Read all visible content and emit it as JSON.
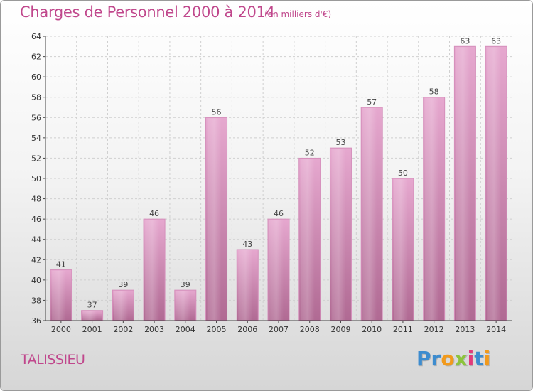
{
  "chart_data": {
    "type": "bar",
    "title": "Charges de Personnel 2000 à 2014",
    "subtitle": "(en milliers d'€)",
    "categories": [
      "2000",
      "2001",
      "2002",
      "2003",
      "2004",
      "2005",
      "2006",
      "2007",
      "2008",
      "2009",
      "2010",
      "2011",
      "2012",
      "2013",
      "2014"
    ],
    "values": [
      41,
      37,
      39,
      46,
      39,
      56,
      43,
      46,
      52,
      53,
      57,
      50,
      58,
      63,
      63
    ],
    "ylim": [
      36,
      64
    ],
    "yticks": [
      36,
      38,
      40,
      42,
      44,
      46,
      48,
      50,
      52,
      54,
      56,
      58,
      60,
      62,
      64
    ],
    "xlabel": "",
    "ylabel": "",
    "grid": true,
    "bar_color_top": "#e6a8cf",
    "bar_color_bottom": "#b06a93"
  },
  "footer": {
    "commune": "TALISSIEU",
    "brand": {
      "letters": [
        {
          "ch": "P",
          "color": "#3d8ccf"
        },
        {
          "ch": "r",
          "color": "#3d8ccf"
        },
        {
          "ch": "o",
          "color": "#f29a1c"
        },
        {
          "ch": "x",
          "color": "#8cc43c"
        },
        {
          "ch": "i",
          "color": "#e23a7b"
        },
        {
          "ch": "t",
          "color": "#3d8ccf"
        },
        {
          "ch": "i",
          "color": "#f29a1c"
        }
      ]
    }
  },
  "colors": {
    "title": "#c0478c",
    "axis": "#444444",
    "grid": "#cfcfcf"
  }
}
